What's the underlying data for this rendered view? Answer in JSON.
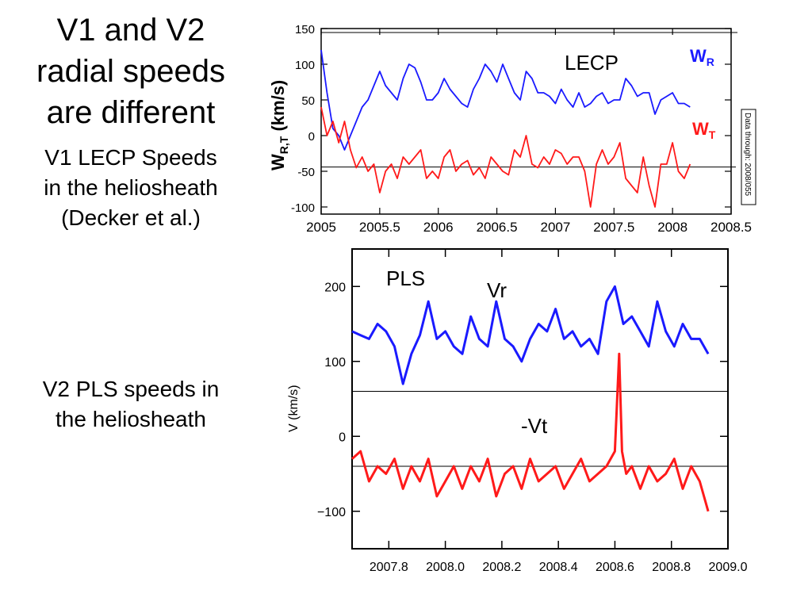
{
  "slide": {
    "title_lines": [
      "V1 and V2",
      "radial speeds",
      "are different"
    ],
    "v1_caption_lines": [
      "V1 LECP Speeds",
      "in the heliosheath",
      "(Decker et al.)"
    ],
    "v2_caption_lines": [
      "V2 PLS speeds in",
      "the heliosheath"
    ]
  },
  "colors": {
    "blue": "#1a1aff",
    "red": "#ff1a1a",
    "axis": "#000000",
    "grid": "#000000"
  },
  "chart_data": [
    {
      "type": "line",
      "instrument_label": "LECP",
      "ylabel_main": "W",
      "ylabel_sub": "R,T",
      "ylabel_unit": "(km/s)",
      "stamp": "Data through: 2008/055",
      "xlim": [
        2005,
        2008.5
      ],
      "ylim": [
        -110,
        150
      ],
      "x_ticks": [
        "2005",
        "2005.5",
        "2006",
        "2006.5",
        "2007",
        "2007.5",
        "2008",
        "2008.5"
      ],
      "x_tick_values": [
        2005,
        2005.5,
        2006,
        2006.5,
        2007,
        2007.5,
        2008,
        2008.5
      ],
      "y_ticks": [
        "150",
        "100",
        "50",
        "0",
        "-50",
        "-100"
      ],
      "y_tick_values": [
        150,
        100,
        50,
        0,
        -50,
        -100
      ],
      "reference_line": -44,
      "series": [
        {
          "name_main": "W",
          "name_sub": "R",
          "color": "#1a1aff",
          "x": [
            2005.0,
            2005.05,
            2005.1,
            2005.15,
            2005.2,
            2005.25,
            2005.3,
            2005.35,
            2005.4,
            2005.45,
            2005.5,
            2005.55,
            2005.6,
            2005.65,
            2005.7,
            2005.75,
            2005.8,
            2005.85,
            2005.9,
            2005.95,
            2006.0,
            2006.05,
            2006.1,
            2006.15,
            2006.2,
            2006.25,
            2006.3,
            2006.35,
            2006.4,
            2006.45,
            2006.5,
            2006.55,
            2006.6,
            2006.65,
            2006.7,
            2006.75,
            2006.8,
            2006.85,
            2006.9,
            2006.95,
            2007.0,
            2007.05,
            2007.1,
            2007.15,
            2007.2,
            2007.25,
            2007.3,
            2007.35,
            2007.4,
            2007.45,
            2007.5,
            2007.55,
            2007.6,
            2007.65,
            2007.7,
            2007.75,
            2007.8,
            2007.85,
            2007.9,
            2007.95,
            2008.0,
            2008.05,
            2008.1,
            2008.15
          ],
          "y": [
            120,
            60,
            10,
            0,
            -20,
            0,
            20,
            40,
            50,
            70,
            90,
            70,
            60,
            50,
            80,
            100,
            95,
            75,
            50,
            50,
            60,
            80,
            65,
            55,
            45,
            40,
            65,
            80,
            100,
            90,
            75,
            100,
            80,
            60,
            50,
            90,
            80,
            60,
            60,
            55,
            45,
            65,
            50,
            40,
            60,
            40,
            45,
            55,
            60,
            45,
            50,
            50,
            80,
            70,
            55,
            60,
            60,
            30,
            50,
            55,
            60,
            45,
            45,
            40
          ]
        },
        {
          "name_main": "W",
          "name_sub": "T",
          "color": "#ff1a1a",
          "x": [
            2005.0,
            2005.05,
            2005.1,
            2005.15,
            2005.2,
            2005.25,
            2005.3,
            2005.35,
            2005.4,
            2005.45,
            2005.5,
            2005.55,
            2005.6,
            2005.65,
            2005.7,
            2005.75,
            2005.8,
            2005.85,
            2005.9,
            2005.95,
            2006.0,
            2006.05,
            2006.1,
            2006.15,
            2006.2,
            2006.25,
            2006.3,
            2006.35,
            2006.4,
            2006.45,
            2006.5,
            2006.55,
            2006.6,
            2006.65,
            2006.7,
            2006.75,
            2006.8,
            2006.85,
            2006.9,
            2006.95,
            2007.0,
            2007.05,
            2007.1,
            2007.15,
            2007.2,
            2007.25,
            2007.3,
            2007.35,
            2007.4,
            2007.45,
            2007.5,
            2007.55,
            2007.6,
            2007.65,
            2007.7,
            2007.75,
            2007.8,
            2007.85,
            2007.9,
            2007.95,
            2008.0,
            2008.05,
            2008.1,
            2008.15
          ],
          "y": [
            40,
            0,
            20,
            -10,
            20,
            -20,
            -45,
            -30,
            -50,
            -40,
            -80,
            -50,
            -40,
            -60,
            -30,
            -40,
            -30,
            -20,
            -60,
            -50,
            -60,
            -30,
            -20,
            -50,
            -40,
            -35,
            -55,
            -45,
            -60,
            -30,
            -40,
            -50,
            -55,
            -20,
            -30,
            0,
            -40,
            -45,
            -30,
            -40,
            -20,
            -25,
            -40,
            -30,
            -30,
            -50,
            -100,
            -40,
            -20,
            -40,
            -30,
            -10,
            -60,
            -70,
            -80,
            -30,
            -70,
            -100,
            -40,
            -40,
            -10,
            -50,
            -60,
            -40
          ]
        }
      ]
    },
    {
      "type": "line",
      "instrument_label": "PLS",
      "ylabel": "V (km/s)",
      "xlim": [
        2007.67,
        2009.0
      ],
      "ylim": [
        -150,
        250
      ],
      "x_ticks": [
        "2007.8",
        "2008.0",
        "2008.2",
        "2008.4",
        "2008.6",
        "2008.8",
        "2009.0"
      ],
      "x_tick_values": [
        2007.8,
        2008.0,
        2008.2,
        2008.4,
        2008.6,
        2008.8,
        2009.0
      ],
      "y_ticks": [
        "200",
        "100",
        "0",
        "−100"
      ],
      "y_tick_values": [
        200,
        100,
        0,
        -100
      ],
      "reference_lines": [
        60,
        -40
      ],
      "series": [
        {
          "name": "Vr",
          "color": "#1a1aff",
          "x": [
            2007.67,
            2007.7,
            2007.73,
            2007.76,
            2007.79,
            2007.82,
            2007.85,
            2007.88,
            2007.91,
            2007.94,
            2007.97,
            2008.0,
            2008.03,
            2008.06,
            2008.09,
            2008.12,
            2008.15,
            2008.18,
            2008.21,
            2008.24,
            2008.27,
            2008.3,
            2008.33,
            2008.36,
            2008.39,
            2008.42,
            2008.45,
            2008.48,
            2008.51,
            2008.54,
            2008.57,
            2008.6,
            2008.63,
            2008.66,
            2008.69,
            2008.72,
            2008.75,
            2008.78,
            2008.81,
            2008.84,
            2008.87,
            2008.9,
            2008.93
          ],
          "y": [
            140,
            135,
            130,
            150,
            140,
            120,
            70,
            110,
            135,
            180,
            130,
            140,
            120,
            110,
            160,
            130,
            120,
            180,
            130,
            120,
            100,
            130,
            150,
            140,
            170,
            130,
            140,
            120,
            130,
            110,
            180,
            200,
            150,
            160,
            140,
            120,
            180,
            140,
            120,
            150,
            130,
            130,
            110
          ]
        },
        {
          "name": "-Vt",
          "color": "#ff1a1a",
          "x": [
            2007.67,
            2007.7,
            2007.73,
            2007.76,
            2007.79,
            2007.82,
            2007.85,
            2007.88,
            2007.91,
            2007.94,
            2007.97,
            2008.0,
            2008.03,
            2008.06,
            2008.09,
            2008.12,
            2008.15,
            2008.18,
            2008.21,
            2008.24,
            2008.27,
            2008.3,
            2008.33,
            2008.36,
            2008.39,
            2008.42,
            2008.45,
            2008.48,
            2008.51,
            2008.54,
            2008.57,
            2008.6,
            2008.615,
            2008.625,
            2008.64,
            2008.66,
            2008.69,
            2008.72,
            2008.75,
            2008.78,
            2008.81,
            2008.84,
            2008.87,
            2008.9,
            2008.93
          ],
          "y": [
            -30,
            -20,
            -60,
            -40,
            -50,
            -30,
            -70,
            -40,
            -60,
            -30,
            -80,
            -60,
            -40,
            -70,
            -40,
            -60,
            -30,
            -80,
            -50,
            -40,
            -70,
            -30,
            -60,
            -50,
            -40,
            -70,
            -50,
            -30,
            -60,
            -50,
            -40,
            -20,
            110,
            -20,
            -50,
            -40,
            -70,
            -40,
            -60,
            -50,
            -30,
            -70,
            -40,
            -60,
            -100
          ]
        }
      ]
    }
  ]
}
